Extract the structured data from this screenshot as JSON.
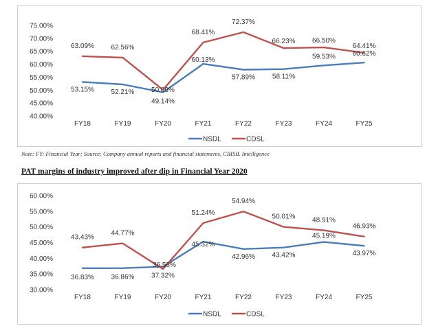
{
  "note": "Note: FY: Financial Year; Source: Company annual reports and financial statements, CRISIL Intelligence",
  "heading2": "PAT margins of industry improved after dip in Financial Year 2020",
  "colors": {
    "NSDL": "#4a7ebb",
    "CDSL": "#c0504d"
  },
  "chart_data": [
    {
      "type": "line",
      "title": "",
      "categories": [
        "FY18",
        "FY19",
        "FY20",
        "FY21",
        "FY22",
        "FY23",
        "FY24",
        "FY25"
      ],
      "ylim": [
        40,
        75
      ],
      "yticks": [
        "40.00%",
        "45.00%",
        "50.00%",
        "55.00%",
        "60.00%",
        "65.00%",
        "70.00%",
        "75.00%"
      ],
      "grid": false,
      "legend_position": "bottom",
      "series": [
        {
          "name": "NSDL",
          "values": [
            53.15,
            52.21,
            49.14,
            60.13,
            57.89,
            58.11,
            59.53,
            60.62
          ],
          "labels": [
            "53.15%",
            "52.21%",
            "49.14%",
            "60.13%",
            "57.89%",
            "58.11%",
            "59.53%",
            "60.62%"
          ]
        },
        {
          "name": "CDSL",
          "values": [
            63.09,
            62.56,
            50.09,
            68.41,
            72.37,
            66.23,
            66.5,
            64.41
          ],
          "labels": [
            "63.09%",
            "62.56%",
            "50.09%",
            "68.41%",
            "72.37%",
            "66.23%",
            "66.50%",
            "64.41%"
          ]
        }
      ]
    },
    {
      "type": "line",
      "title": "",
      "categories": [
        "FY18",
        "FY19",
        "FY20",
        "FY21",
        "FY22",
        "FY23",
        "FY24",
        "FY25"
      ],
      "ylim": [
        30,
        60
      ],
      "yticks": [
        "30.00%",
        "35.00%",
        "40.00%",
        "45.00%",
        "50.00%",
        "55.00%",
        "60.00%"
      ],
      "grid": false,
      "legend_position": "bottom",
      "series": [
        {
          "name": "NSDL",
          "values": [
            36.83,
            36.86,
            37.32,
            45.32,
            42.96,
            43.42,
            45.19,
            43.97
          ],
          "labels": [
            "36.83%",
            "36.86%",
            "37.32%",
            "45.32%",
            "42.96%",
            "43.42%",
            "45.19%",
            "43.97%"
          ]
        },
        {
          "name": "CDSL",
          "values": [
            43.43,
            44.77,
            36.58,
            51.24,
            54.94,
            50.01,
            48.91,
            46.93
          ],
          "labels": [
            "43.43%",
            "44.77%",
            "36.58%",
            "51.24%",
            "54.94%",
            "50.01%",
            "48.91%",
            "46.93%"
          ]
        }
      ]
    }
  ]
}
